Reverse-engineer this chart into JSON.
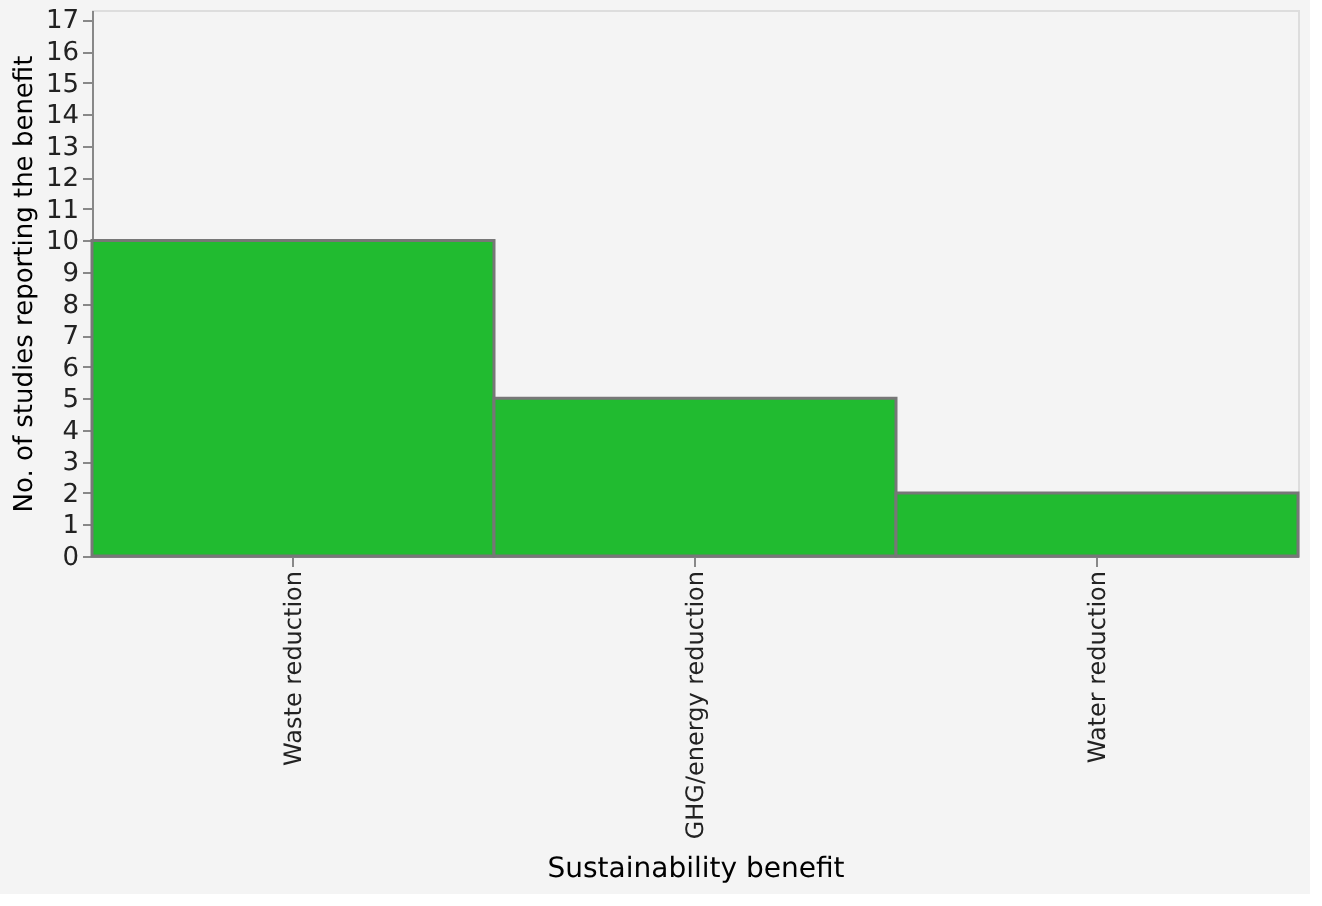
{
  "chart_data": {
    "type": "bar",
    "xlabel": "Sustainability benefit",
    "ylabel": "No. of studies reporting the benefit",
    "categories": [
      "Waste reduction",
      "GHG/energy reduction",
      "Water reduction"
    ],
    "values": [
      10,
      5,
      2
    ],
    "color": "#21bb30",
    "ylim": [
      0,
      17.3
    ],
    "yticks": [
      0,
      1,
      2,
      3,
      4,
      5,
      6,
      7,
      8,
      9,
      10,
      11,
      12,
      13,
      14,
      15,
      16,
      17
    ],
    "grid": false
  }
}
